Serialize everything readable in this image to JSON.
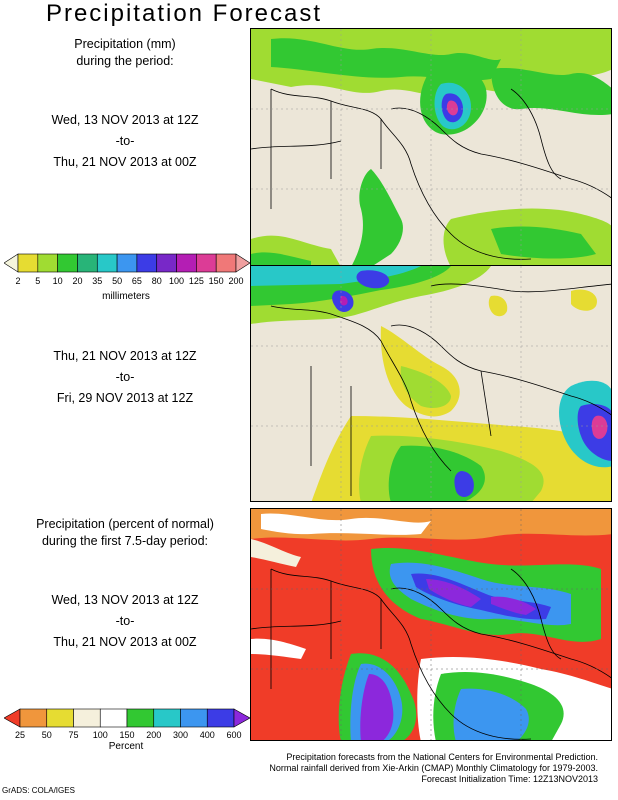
{
  "title": "Precipitation Forecast",
  "panel1": {
    "heading_line1": "Precipitation (mm)",
    "heading_line2": "during the period:",
    "start": "Wed, 13 NOV 2013 at 12Z",
    "to": "-to-",
    "end": "Thu, 21 NOV 2013 at 00Z"
  },
  "panel2": {
    "start": "Thu, 21 NOV 2013 at 12Z",
    "to": "-to-",
    "end": "Fri, 29 NOV 2013 at 12Z"
  },
  "panel3": {
    "heading_line1": "Precipitation (percent of normal)",
    "heading_line2": "during the first 7.5-day period:",
    "start": "Wed, 13 NOV 2013 at 12Z",
    "to": "-to-",
    "end": "Thu, 21 NOV 2013 at 00Z"
  },
  "colorbar_mm": {
    "unit": "millimeters",
    "labels": [
      "2",
      "5",
      "10",
      "20",
      "35",
      "50",
      "65",
      "80",
      "100",
      "125",
      "150",
      "200"
    ],
    "colors": [
      "#f5f5dc",
      "#e6dc32",
      "#a0dc32",
      "#32c832",
      "#28b478",
      "#28c8c8",
      "#3c96f0",
      "#3c3ce6",
      "#7828c8",
      "#b41eb4",
      "#dc3c96",
      "#f07878",
      "#f0a0a0"
    ]
  },
  "colorbar_pct": {
    "unit": "Percent",
    "labels": [
      "25",
      "50",
      "75",
      "100",
      "150",
      "200",
      "300",
      "400",
      "600"
    ],
    "colors": [
      "#f03c28",
      "#f0963c",
      "#e6dc32",
      "#f5f0dc",
      "#ffffff",
      "#32c832",
      "#28c8c8",
      "#3c96f0",
      "#3c3ce6",
      "#8c28dc"
    ]
  },
  "footer": {
    "line1": "Precipitation forecasts from the National Centers for Environmental Prediction.",
    "line2": "Normal rainfall derived from Xie-Arkin (CMAP) Monthly Climatology for 1979-2003.",
    "line3": "Forecast Initialization Time: 12Z13NOV2013"
  },
  "credit": "GrADS: COLA/IGES"
}
